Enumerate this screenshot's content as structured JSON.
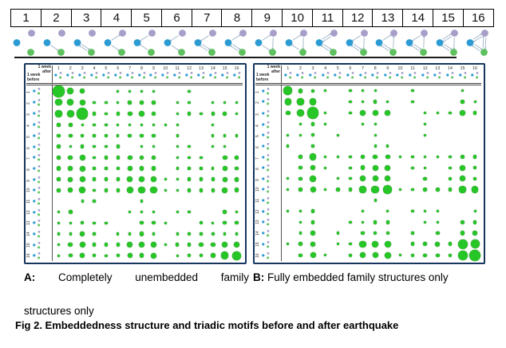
{
  "colors": {
    "bubble_green": "#25c625",
    "bubble_edge": "#6aa06a",
    "node_blue": "#2d9bd3",
    "node_green": "#5fc05f",
    "node_purple": "#a79fca",
    "motif_edge_gray": "#a9bccd",
    "panel_border_navy": "#17365d"
  },
  "box_labels": [
    "1",
    "2",
    "3",
    "4",
    "5",
    "6",
    "7",
    "8",
    "9",
    "10",
    "11",
    "12",
    "13",
    "14",
    "15",
    "16"
  ],
  "motifs": [
    {
      "name": "triad-003",
      "edges": []
    },
    {
      "name": "triad-012",
      "edges": [
        [
          "B",
          "G",
          false
        ]
      ]
    },
    {
      "name": "triad-102",
      "edges": [
        [
          "B",
          "G",
          true
        ]
      ]
    },
    {
      "name": "triad-021D",
      "edges": [
        [
          "B",
          "P",
          false
        ],
        [
          "B",
          "G",
          false
        ]
      ]
    },
    {
      "name": "triad-021U",
      "edges": [
        [
          "P",
          "B",
          false
        ],
        [
          "G",
          "B",
          false
        ]
      ]
    },
    {
      "name": "triad-021C",
      "edges": [
        [
          "P",
          "B",
          false
        ],
        [
          "B",
          "G",
          false
        ]
      ]
    },
    {
      "name": "triad-111D",
      "edges": [
        [
          "B",
          "G",
          true
        ],
        [
          "P",
          "B",
          false
        ]
      ]
    },
    {
      "name": "triad-111U",
      "edges": [
        [
          "B",
          "G",
          true
        ],
        [
          "B",
          "P",
          false
        ]
      ]
    },
    {
      "name": "triad-030T",
      "edges": [
        [
          "B",
          "P",
          false
        ],
        [
          "B",
          "G",
          false
        ],
        [
          "P",
          "G",
          false
        ]
      ]
    },
    {
      "name": "triad-030C",
      "edges": [
        [
          "B",
          "P",
          false
        ],
        [
          "P",
          "G",
          false
        ],
        [
          "G",
          "B",
          false
        ]
      ]
    },
    {
      "name": "triad-201",
      "edges": [
        [
          "B",
          "P",
          true
        ],
        [
          "B",
          "G",
          true
        ]
      ]
    },
    {
      "name": "triad-120D",
      "edges": [
        [
          "B",
          "G",
          true
        ],
        [
          "P",
          "B",
          false
        ],
        [
          "P",
          "G",
          false
        ]
      ]
    },
    {
      "name": "triad-120U",
      "edges": [
        [
          "B",
          "G",
          true
        ],
        [
          "B",
          "P",
          false
        ],
        [
          "G",
          "P",
          false
        ]
      ]
    },
    {
      "name": "triad-120C",
      "edges": [
        [
          "B",
          "G",
          true
        ],
        [
          "P",
          "B",
          false
        ],
        [
          "G",
          "P",
          false
        ]
      ]
    },
    {
      "name": "triad-210",
      "edges": [
        [
          "B",
          "P",
          true
        ],
        [
          "B",
          "G",
          true
        ],
        [
          "P",
          "G",
          false
        ]
      ]
    },
    {
      "name": "triad-300",
      "edges": [
        [
          "B",
          "P",
          true
        ],
        [
          "B",
          "G",
          true
        ],
        [
          "P",
          "G",
          true
        ]
      ]
    }
  ],
  "panels": [
    {
      "id": "A",
      "col_axis_label": "1 week\nafter",
      "row_axis_label": "1 week\nbefore"
    },
    {
      "id": "B",
      "col_axis_label": "1 week\nafter",
      "row_axis_label": "1 week\nbefore"
    }
  ],
  "chart_data": [
    {
      "type": "bubble-matrix",
      "panel": "A",
      "title": "Completely unembedded family structures only",
      "xlabel": "1 week after (triad motif 1-16)",
      "ylabel": "1 week before (triad motif 1-16)",
      "categories": [
        "1",
        "2",
        "3",
        "4",
        "5",
        "6",
        "7",
        "8",
        "9",
        "10",
        "11",
        "12",
        "13",
        "14",
        "15",
        "16"
      ],
      "size_scale": "relative bubble size 0-10, estimated from pixels",
      "matrix": [
        [
          10,
          5,
          3,
          0,
          0,
          1,
          1,
          1,
          1,
          0,
          0,
          1,
          0,
          0,
          0,
          0
        ],
        [
          5,
          5,
          4,
          1,
          1,
          1,
          2,
          2,
          2,
          0,
          1,
          1,
          0,
          1,
          1,
          1
        ],
        [
          5,
          6,
          10,
          2,
          1,
          2,
          3,
          4,
          3,
          0,
          1,
          2,
          1,
          2,
          2,
          1
        ],
        [
          2,
          2,
          1,
          1,
          1,
          1,
          1,
          1,
          1,
          1,
          1,
          0,
          0,
          1,
          0,
          0
        ],
        [
          2,
          2,
          2,
          1,
          2,
          1,
          2,
          2,
          2,
          0,
          1,
          0,
          0,
          1,
          1,
          1
        ],
        [
          2,
          1,
          2,
          1,
          1,
          2,
          0,
          1,
          1,
          0,
          1,
          1,
          0,
          1,
          1,
          0
        ],
        [
          2,
          3,
          4,
          1,
          2,
          2,
          3,
          3,
          3,
          0,
          1,
          1,
          1,
          0,
          3,
          2
        ],
        [
          3,
          3,
          4,
          1,
          1,
          2,
          3,
          3,
          3,
          0,
          1,
          1,
          1,
          1,
          3,
          2
        ],
        [
          2,
          3,
          4,
          2,
          2,
          2,
          4,
          4,
          4,
          1,
          1,
          2,
          2,
          2,
          3,
          3
        ],
        [
          2,
          3,
          5,
          1,
          2,
          2,
          5,
          5,
          5,
          1,
          1,
          2,
          2,
          2,
          4,
          3
        ],
        [
          0,
          0,
          1,
          1,
          0,
          0,
          0,
          1,
          0,
          0,
          0,
          0,
          0,
          0,
          0,
          0
        ],
        [
          1,
          2,
          0,
          0,
          0,
          0,
          1,
          1,
          1,
          0,
          1,
          1,
          0,
          0,
          2,
          1
        ],
        [
          1,
          1,
          2,
          1,
          1,
          0,
          0,
          2,
          2,
          1,
          0,
          0,
          2,
          1,
          2,
          2
        ],
        [
          1,
          1,
          3,
          1,
          0,
          1,
          1,
          3,
          1,
          0,
          1,
          2,
          1,
          2,
          1,
          1
        ],
        [
          1,
          3,
          4,
          2,
          2,
          2,
          4,
          4,
          4,
          1,
          2,
          2,
          3,
          3,
          4,
          4
        ],
        [
          1,
          2,
          3,
          2,
          1,
          2,
          3,
          3,
          4,
          0,
          1,
          2,
          2,
          3,
          6,
          7
        ]
      ]
    },
    {
      "type": "bubble-matrix",
      "panel": "B",
      "title": "Fully embedded family structures only",
      "xlabel": "1 week after (triad motif 1-16)",
      "ylabel": "1 week before (triad motif 1-16)",
      "categories": [
        "1",
        "2",
        "3",
        "4",
        "5",
        "6",
        "7",
        "8",
        "9",
        "10",
        "11",
        "12",
        "13",
        "14",
        "15",
        "16"
      ],
      "size_scale": "relative bubble size 0-10, estimated from pixels",
      "matrix": [
        [
          7,
          3,
          2,
          1,
          0,
          1,
          1,
          1,
          0,
          0,
          1,
          0,
          0,
          0,
          1,
          0
        ],
        [
          5,
          5,
          5,
          0,
          0,
          1,
          1,
          2,
          1,
          0,
          1,
          0,
          0,
          0,
          2,
          1
        ],
        [
          3,
          6,
          10,
          1,
          0,
          1,
          4,
          4,
          4,
          0,
          0,
          1,
          1,
          1,
          4,
          2
        ],
        [
          0,
          1,
          2,
          1,
          0,
          0,
          1,
          1,
          0,
          0,
          0,
          1,
          0,
          0,
          0,
          0
        ],
        [
          1,
          1,
          2,
          0,
          1,
          0,
          0,
          1,
          0,
          0,
          0,
          1,
          0,
          0,
          0,
          0
        ],
        [
          1,
          0,
          1,
          0,
          0,
          0,
          0,
          1,
          1,
          0,
          0,
          0,
          0,
          0,
          0,
          0
        ],
        [
          0,
          2,
          5,
          1,
          1,
          1,
          3,
          3,
          3,
          1,
          1,
          1,
          1,
          1,
          3,
          2
        ],
        [
          0,
          2,
          3,
          1,
          0,
          1,
          3,
          4,
          4,
          0,
          1,
          1,
          0,
          1,
          4,
          2
        ],
        [
          1,
          2,
          5,
          0,
          1,
          1,
          4,
          4,
          4,
          0,
          0,
          2,
          0,
          2,
          4,
          2
        ],
        [
          1,
          2,
          4,
          1,
          2,
          2,
          5,
          6,
          7,
          1,
          1,
          2,
          2,
          2,
          5,
          5
        ],
        [
          0,
          0,
          0,
          0,
          0,
          0,
          0,
          1,
          0,
          0,
          0,
          0,
          0,
          0,
          0,
          0
        ],
        [
          1,
          1,
          2,
          0,
          0,
          0,
          1,
          0,
          1,
          0,
          1,
          1,
          1,
          0,
          0,
          1
        ],
        [
          0,
          1,
          2,
          0,
          0,
          1,
          1,
          2,
          2,
          0,
          0,
          1,
          1,
          0,
          3,
          2
        ],
        [
          0,
          1,
          3,
          0,
          1,
          0,
          2,
          2,
          2,
          0,
          1,
          0,
          2,
          0,
          3,
          3
        ],
        [
          1,
          2,
          3,
          0,
          1,
          1,
          5,
          5,
          5,
          0,
          2,
          2,
          3,
          2,
          8,
          7
        ],
        [
          0,
          2,
          4,
          1,
          0,
          2,
          4,
          4,
          5,
          1,
          2,
          2,
          2,
          2,
          8,
          10
        ]
      ]
    }
  ],
  "captions": {
    "a_prefix": "A:",
    "a_line1": "Completely unembedded family",
    "a_line2": "structures only",
    "b_prefix": "B:",
    "b_text": "Fully embedded family structures only",
    "figure": "Fig 2. Embeddedness structure and triadic motifs before and after earthquake"
  }
}
